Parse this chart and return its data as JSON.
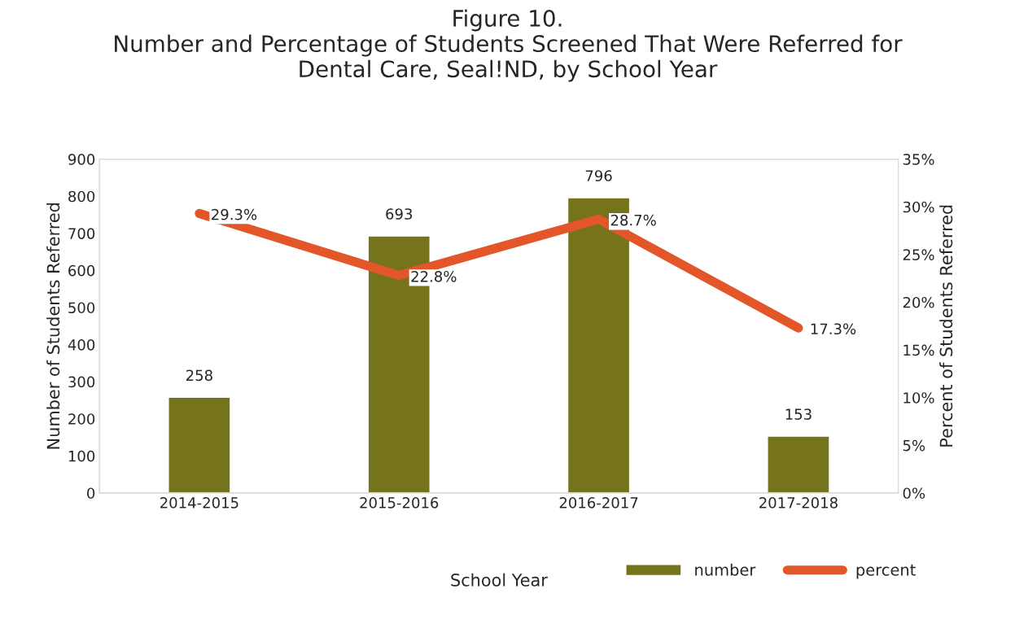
{
  "chart_data": {
    "type": "bar",
    "title": "Figure 10.\nNumber and Percentage of Students Screened That Were Referred for\nDental Care, Seal!ND, by School Year",
    "categories": [
      "2014-2015",
      "2015-2016",
      "2016-2017",
      "2017-2018"
    ],
    "xlabel": "School Year",
    "ylabel": "Number of Students Referred",
    "y2label": "Percent of Students Referred",
    "series": [
      {
        "name": "number",
        "color": "#75731b",
        "values": [
          258,
          693,
          796,
          153
        ],
        "value_labels": [
          "258",
          "693",
          "796",
          "153"
        ]
      },
      {
        "name": "percent",
        "type": "line",
        "axis": "y2",
        "color": "#e2562a",
        "values": [
          29.3,
          22.8,
          28.7,
          17.3
        ],
        "value_labels": [
          "29.3%",
          "22.8%",
          "28.7%",
          "17.3%"
        ]
      }
    ],
    "ylim": [
      0,
      900
    ],
    "yticks": [
      0,
      100,
      200,
      300,
      400,
      500,
      600,
      700,
      800,
      900
    ],
    "y2lim": [
      0,
      35
    ],
    "y2ticks": [
      {
        "value": 0,
        "label": "0%"
      },
      {
        "value": 5,
        "label": "5%"
      },
      {
        "value": 10,
        "label": "10%"
      },
      {
        "value": 15,
        "label": "15%"
      },
      {
        "value": 20,
        "label": "20%"
      },
      {
        "value": 25,
        "label": "25%"
      },
      {
        "value": 30,
        "label": "30%"
      },
      {
        "value": 35,
        "label": "35%"
      }
    ],
    "grid": false,
    "legend": "bottom right",
    "marker": "none",
    "line_style": "solid"
  }
}
